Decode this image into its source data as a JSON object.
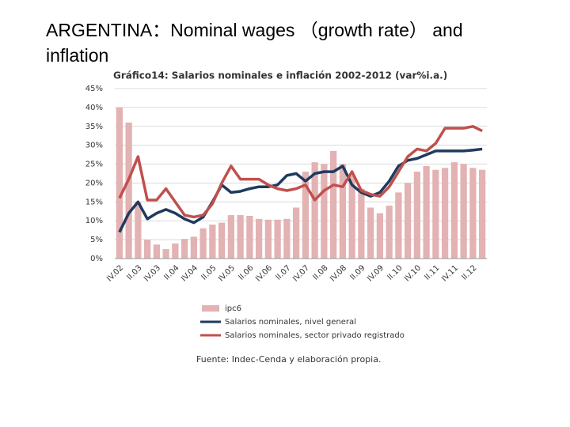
{
  "slide_title": "ARGENTINA：Nominal wages （growth rate） and inflation",
  "chart_data": {
    "type": "bar_line",
    "title": "Gráfico14: Salarios nominales e inflación 2002-2012 (var%i.a.)",
    "source": "Fuente: Indec-Cenda y elaboración propia.",
    "categories": [
      "IV.02",
      null,
      "II.03",
      null,
      "IV.03",
      null,
      "II.04",
      null,
      "IV.04",
      null,
      "II.05",
      null,
      "IV.05",
      null,
      "II.06",
      null,
      "IV.06",
      null,
      "II.07",
      null,
      "IV.07",
      null,
      "II.08",
      null,
      "IV.08",
      null,
      "II.09",
      null,
      "IV.09",
      null,
      "II.10",
      null,
      "IV.10",
      null,
      "II.11",
      null,
      "IV.11",
      null,
      "II.12",
      null
    ],
    "series": [
      {
        "name": "ipc6",
        "kind": "bar",
        "color": "#e3b2b3",
        "values": [
          40,
          36,
          15,
          5,
          3.7,
          2.5,
          4,
          5.2,
          5.8,
          8,
          9,
          9.5,
          11.5,
          11.5,
          11.3,
          10.5,
          10.3,
          10.3,
          10.5,
          13.5,
          23,
          25.5,
          25,
          28.5,
          25,
          22,
          18.5,
          13.5,
          12,
          14,
          17.5,
          20,
          23,
          24.5,
          23.5,
          24,
          25.5,
          25,
          24,
          23.5
        ]
      },
      {
        "name": "Salarios nominales, nivel general",
        "kind": "line",
        "color": "#1f3a5f",
        "values": [
          7,
          12,
          15,
          10.5,
          12,
          13,
          12,
          10.5,
          9.5,
          11,
          15,
          19.5,
          17.5,
          17.8,
          18.5,
          19,
          19,
          19.5,
          22,
          22.5,
          20.5,
          22.5,
          23,
          23,
          24.5,
          19.5,
          17.5,
          16.5,
          17.5,
          20.5,
          24.5,
          26,
          26.5,
          27.5,
          28.5,
          28.5,
          28.5,
          28.5,
          28.7,
          29
        ]
      },
      {
        "name": "Salarios nominales, sector privado registrado",
        "kind": "line",
        "color": "#c0504d",
        "values": [
          16,
          21,
          27,
          15.5,
          15.5,
          18.5,
          15,
          11.5,
          11,
          11.5,
          14.5,
          20,
          24.5,
          21,
          21,
          21,
          19.5,
          18.5,
          18,
          18.5,
          19.5,
          15.5,
          18,
          19.5,
          19,
          23,
          18,
          17,
          16.5,
          19,
          23,
          27,
          29,
          28.5,
          30.5,
          34.5,
          34.5,
          34.5,
          35,
          33.8
        ]
      }
    ],
    "ylim": [
      0,
      45
    ],
    "yticks": [
      {
        "value": 0,
        "label": "0%"
      },
      {
        "value": 5,
        "label": "5%"
      },
      {
        "value": 10,
        "label": "10%"
      },
      {
        "value": 15,
        "label": "15%"
      },
      {
        "value": 20,
        "label": "20%"
      },
      {
        "value": 25,
        "label": "25%"
      },
      {
        "value": 30,
        "label": "30%"
      },
      {
        "value": 35,
        "label": "35%"
      },
      {
        "value": 40,
        "label": "40%"
      },
      {
        "value": 45,
        "label": "45%"
      }
    ],
    "grid": true
  }
}
